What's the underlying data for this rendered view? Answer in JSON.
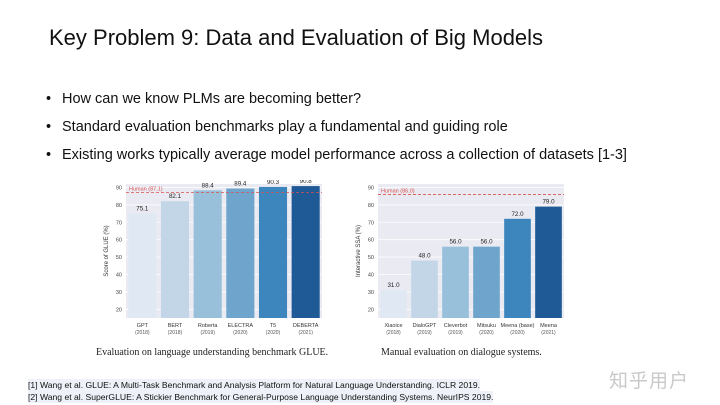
{
  "title": "Key Problem 9: Data and Evaluation of Big Models",
  "bullets": [
    "How can we know PLMs are becoming better?",
    "Standard evaluation benchmarks play a fundamental and guiding role",
    "Existing works typically average model performance across a collection of datasets [1-3]"
  ],
  "chart_data": [
    {
      "type": "bar",
      "ylabel": "Score of GLUE (%)",
      "ylim": [
        15,
        92
      ],
      "yticks": [
        20,
        30,
        40,
        50,
        60,
        70,
        80,
        90
      ],
      "categories": [
        "GPT",
        "BERT",
        "Roberta",
        "ELECTRA",
        "T5",
        "DEBERTA"
      ],
      "years": [
        "(2018)",
        "(2018)",
        "(2019)",
        "(2020)",
        "(2020)",
        "(2021)"
      ],
      "values": [
        75.1,
        82.1,
        88.4,
        89.4,
        90.3,
        90.8
      ],
      "value_labels": [
        "75.1",
        "82.1",
        "88.4",
        "89.4",
        "90.3",
        "90.8"
      ],
      "colors": [
        "#e0e9f3",
        "#c3d6e8",
        "#98c0da",
        "#6fa5cd",
        "#3d85bd",
        "#1f5a96"
      ],
      "reference": {
        "label": "Human (87.1)",
        "value": 87.1,
        "color": "#d9534f"
      },
      "caption": "Evaluation on language understanding benchmark GLUE."
    },
    {
      "type": "bar",
      "ylabel": "Interactive SSA (%)",
      "ylim": [
        15,
        92
      ],
      "yticks": [
        20,
        30,
        40,
        50,
        60,
        70,
        80,
        90
      ],
      "categories": [
        "Xiaoice",
        "DialoGPT",
        "Cleverbot",
        "Mitsuku",
        "Meena (base)",
        "Meena"
      ],
      "years": [
        "(2018)",
        "(2019)",
        "(2019)",
        "(2020)",
        "(2020)",
        "(2021)"
      ],
      "values": [
        31.0,
        48.0,
        56.0,
        56.0,
        72.0,
        79.0
      ],
      "value_labels": [
        "31.0",
        "48.0",
        "56.0",
        "56.0",
        "72.0",
        "79.0"
      ],
      "colors": [
        "#e0e9f3",
        "#c3d6e8",
        "#98c0da",
        "#6fa5cd",
        "#3d85bd",
        "#1f5a96"
      ],
      "reference": {
        "label": "Human (86.0)",
        "value": 86.0,
        "color": "#d9534f"
      },
      "caption": "Manual evaluation on dialogue systems."
    }
  ],
  "references": [
    "[1] Wang et al. GLUE: A Multi-Task Benchmark and Analysis Platform for Natural Language Understanding. ICLR 2019.",
    "[2] Wang et al. SuperGLUE: A Stickier Benchmark for General-Purpose Language Understanding Systems. NeurIPS 2019."
  ],
  "watermark": "知乎用户"
}
